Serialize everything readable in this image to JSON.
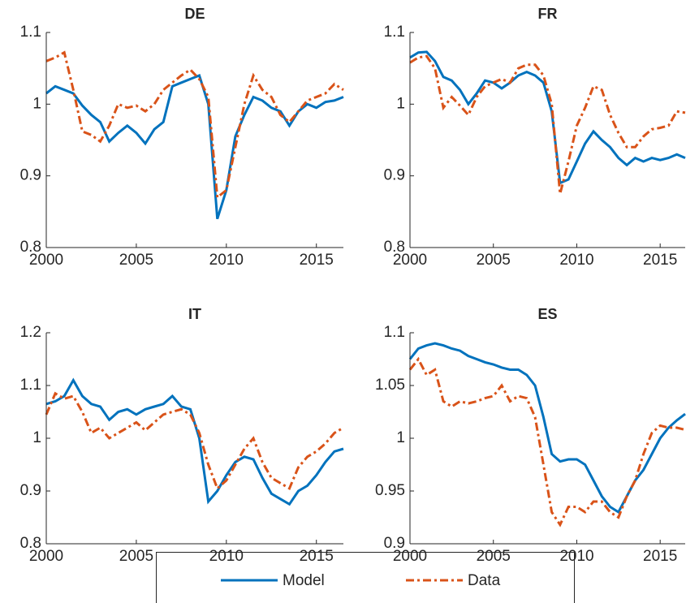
{
  "chart_data": [
    {
      "type": "line",
      "title": "DE",
      "x": [
        2000,
        2000.5,
        2001,
        2001.5,
        2002,
        2002.5,
        2003,
        2003.5,
        2004,
        2004.5,
        2005,
        2005.5,
        2006,
        2006.5,
        2007,
        2007.5,
        2008,
        2008.5,
        2009,
        2009.5,
        2010,
        2010.5,
        2011,
        2011.5,
        2012,
        2012.5,
        2013,
        2013.5,
        2014,
        2014.5,
        2015,
        2015.5,
        2016,
        2016.5
      ],
      "xlim": [
        2000,
        2016.5
      ],
      "xticks": [
        2000,
        2005,
        2010,
        2015
      ],
      "ylim": [
        0.8,
        1.1
      ],
      "yticks": [
        0.8,
        0.9,
        1,
        1.1
      ],
      "series": [
        {
          "name": "Model",
          "color": "#0072bd",
          "line_style": "solid",
          "values": [
            1.015,
            1.025,
            1.02,
            1.015,
            0.998,
            0.985,
            0.975,
            0.948,
            0.96,
            0.97,
            0.96,
            0.945,
            0.965,
            0.975,
            1.025,
            1.03,
            1.035,
            1.04,
            1.0,
            0.84,
            0.88,
            0.955,
            0.985,
            1.01,
            1.005,
            0.995,
            0.99,
            0.97,
            0.99,
            1.0,
            0.995,
            1.003,
            1.005,
            1.01
          ]
        },
        {
          "name": "Data",
          "color": "#d95319",
          "line_style": "dashdot",
          "values": [
            1.06,
            1.065,
            1.072,
            1.02,
            0.962,
            0.957,
            0.948,
            0.97,
            1.0,
            0.995,
            0.998,
            0.99,
            1.0,
            1.02,
            1.03,
            1.04,
            1.048,
            1.035,
            1.01,
            0.87,
            0.88,
            0.94,
            1.0,
            1.04,
            1.02,
            1.01,
            0.985,
            0.975,
            0.99,
            1.005,
            1.01,
            1.015,
            1.028,
            1.02
          ]
        }
      ]
    },
    {
      "type": "line",
      "title": "FR",
      "x": [
        2000,
        2000.5,
        2001,
        2001.5,
        2002,
        2002.5,
        2003,
        2003.5,
        2004,
        2004.5,
        2005,
        2005.5,
        2006,
        2006.5,
        2007,
        2007.5,
        2008,
        2008.5,
        2009,
        2009.5,
        2010,
        2010.5,
        2011,
        2011.5,
        2012,
        2012.5,
        2013,
        2013.5,
        2014,
        2014.5,
        2015,
        2015.5,
        2016,
        2016.5
      ],
      "xlim": [
        2000,
        2016.5
      ],
      "xticks": [
        2000,
        2005,
        2010,
        2015
      ],
      "ylim": [
        0.8,
        1.1
      ],
      "yticks": [
        0.8,
        0.9,
        1,
        1.1
      ],
      "series": [
        {
          "color": "#0072bd",
          "line_style": "solid",
          "values": [
            1.065,
            1.072,
            1.073,
            1.06,
            1.038,
            1.033,
            1.02,
            1.0,
            1.015,
            1.033,
            1.03,
            1.022,
            1.03,
            1.04,
            1.045,
            1.04,
            1.03,
            0.99,
            0.89,
            0.895,
            0.92,
            0.945,
            0.962,
            0.95,
            0.94,
            0.925,
            0.915,
            0.925,
            0.92,
            0.925,
            0.922,
            0.925,
            0.93,
            0.925
          ]
        },
        {
          "color": "#d95319",
          "line_style": "dashdot",
          "values": [
            1.058,
            1.065,
            1.067,
            1.05,
            0.995,
            1.01,
            0.998,
            0.985,
            1.01,
            1.025,
            1.03,
            1.035,
            1.03,
            1.05,
            1.055,
            1.055,
            1.04,
            1.0,
            0.875,
            0.92,
            0.97,
            0.995,
            1.025,
            1.02,
            0.985,
            0.96,
            0.94,
            0.94,
            0.955,
            0.965,
            0.967,
            0.97,
            0.99,
            0.988
          ]
        }
      ]
    },
    {
      "type": "line",
      "title": "IT",
      "x": [
        2000,
        2000.5,
        2001,
        2001.5,
        2002,
        2002.5,
        2003,
        2003.5,
        2004,
        2004.5,
        2005,
        2005.5,
        2006,
        2006.5,
        2007,
        2007.5,
        2008,
        2008.5,
        2009,
        2009.5,
        2010,
        2010.5,
        2011,
        2011.5,
        2012,
        2012.5,
        2013,
        2013.5,
        2014,
        2014.5,
        2015,
        2015.5,
        2016,
        2016.5
      ],
      "xlim": [
        2000,
        2016.5
      ],
      "xticks": [
        2000,
        2005,
        2010,
        2015
      ],
      "ylim": [
        0.8,
        1.2
      ],
      "yticks": [
        0.8,
        0.9,
        1,
        1.1,
        1.2
      ],
      "series": [
        {
          "color": "#0072bd",
          "line_style": "solid",
          "values": [
            1.065,
            1.07,
            1.08,
            1.11,
            1.08,
            1.065,
            1.06,
            1.035,
            1.05,
            1.055,
            1.045,
            1.055,
            1.06,
            1.065,
            1.08,
            1.06,
            1.055,
            1.0,
            0.88,
            0.9,
            0.93,
            0.955,
            0.965,
            0.96,
            0.925,
            0.895,
            0.885,
            0.875,
            0.9,
            0.91,
            0.93,
            0.955,
            0.975,
            0.98
          ]
        },
        {
          "color": "#d95319",
          "line_style": "dashdot",
          "values": [
            1.045,
            1.085,
            1.075,
            1.08,
            1.05,
            1.01,
            1.02,
            1.0,
            1.01,
            1.02,
            1.03,
            1.015,
            1.03,
            1.045,
            1.05,
            1.055,
            1.045,
            1.01,
            0.95,
            0.905,
            0.92,
            0.95,
            0.98,
            1.0,
            0.955,
            0.925,
            0.915,
            0.905,
            0.945,
            0.965,
            0.975,
            0.99,
            1.01,
            1.02
          ]
        }
      ]
    },
    {
      "type": "line",
      "title": "ES",
      "x": [
        2000,
        2000.5,
        2001,
        2001.5,
        2002,
        2002.5,
        2003,
        2003.5,
        2004,
        2004.5,
        2005,
        2005.5,
        2006,
        2006.5,
        2007,
        2007.5,
        2008,
        2008.5,
        2009,
        2009.5,
        2010,
        2010.5,
        2011,
        2011.5,
        2012,
        2012.5,
        2013,
        2013.5,
        2014,
        2014.5,
        2015,
        2015.5,
        2016,
        2016.5
      ],
      "xlim": [
        2000,
        2016.5
      ],
      "xticks": [
        2000,
        2005,
        2010,
        2015
      ],
      "ylim": [
        0.9,
        1.1
      ],
      "yticks": [
        0.9,
        0.95,
        1,
        1.05,
        1.1
      ],
      "series": [
        {
          "color": "#0072bd",
          "line_style": "solid",
          "values": [
            1.075,
            1.085,
            1.088,
            1.09,
            1.088,
            1.085,
            1.083,
            1.078,
            1.075,
            1.072,
            1.07,
            1.067,
            1.065,
            1.065,
            1.06,
            1.05,
            1.02,
            0.985,
            0.978,
            0.98,
            0.98,
            0.975,
            0.96,
            0.945,
            0.935,
            0.93,
            0.945,
            0.96,
            0.97,
            0.985,
            1.0,
            1.01,
            1.017,
            1.023
          ]
        },
        {
          "color": "#d95319",
          "line_style": "dashdot",
          "values": [
            1.065,
            1.075,
            1.06,
            1.065,
            1.035,
            1.03,
            1.035,
            1.033,
            1.035,
            1.038,
            1.04,
            1.05,
            1.035,
            1.04,
            1.038,
            1.02,
            0.975,
            0.93,
            0.918,
            0.935,
            0.935,
            0.93,
            0.94,
            0.94,
            0.93,
            0.925,
            0.945,
            0.96,
            0.985,
            1.005,
            1.012,
            1.01,
            1.01,
            1.008
          ]
        }
      ]
    }
  ]
}
